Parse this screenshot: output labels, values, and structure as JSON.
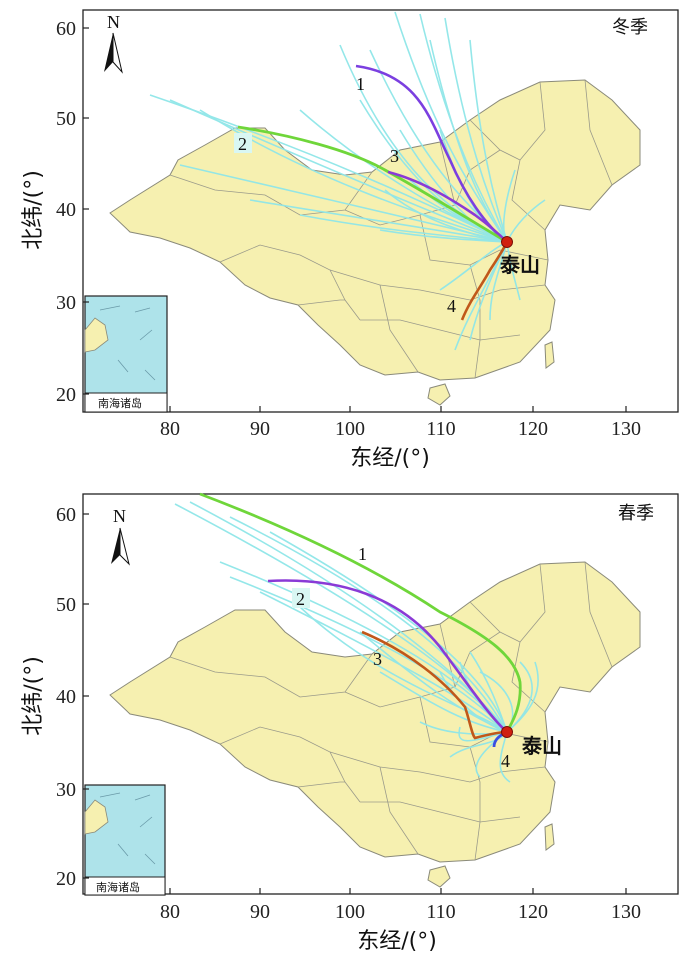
{
  "panels": [
    {
      "season_label": "冬季",
      "site_label": "泰山",
      "xlabel": "东经/(°)",
      "ylabel": "北纬/(°)",
      "inset_label": "南海诸岛",
      "north_label": "N",
      "xticks": [
        "80",
        "90",
        "100",
        "110",
        "120",
        "130"
      ],
      "yticks": [
        "60",
        "50",
        "40",
        "30",
        "20"
      ],
      "clusters": [
        {
          "id": "1",
          "color": "#7b3fe0"
        },
        {
          "id": "2",
          "color": "#6fd63a"
        },
        {
          "id": "3",
          "color": "#8a3ad6"
        },
        {
          "id": "4",
          "color": "#c0581a"
        }
      ]
    },
    {
      "season_label": "春季",
      "site_label": "泰山",
      "xlabel": "东经/(°)",
      "ylabel": "北纬/(°)",
      "inset_label": "南海诸岛",
      "north_label": "N",
      "xticks": [
        "80",
        "90",
        "100",
        "110",
        "120",
        "130"
      ],
      "yticks": [
        "60",
        "50",
        "40",
        "30",
        "20"
      ],
      "clusters": [
        {
          "id": "1",
          "color": "#6fd63a"
        },
        {
          "id": "2",
          "color": "#8a3ad6"
        },
        {
          "id": "3",
          "color": "#c0581a"
        },
        {
          "id": "4",
          "color": "#3a4fe0"
        }
      ]
    }
  ],
  "colors": {
    "land": "#f6f0b0",
    "border": "#8a8a7a",
    "background_trajectories": "#8fe6e8",
    "site_marker": "#d02010",
    "inset_sea": "#aee3ea"
  }
}
